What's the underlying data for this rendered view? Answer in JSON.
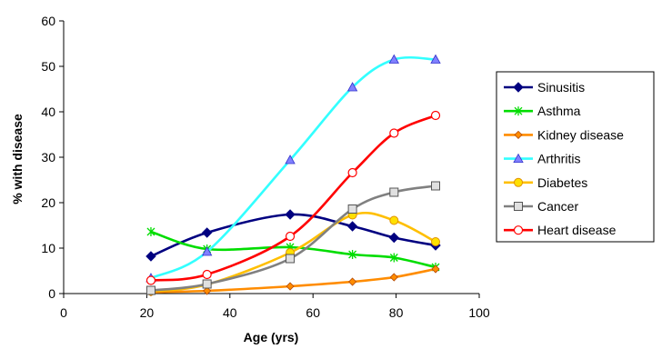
{
  "chart_data": {
    "type": "line",
    "title": "",
    "xlabel": "Age (yrs)",
    "ylabel": "% with disease",
    "xlim": [
      0,
      100
    ],
    "ylim": [
      0,
      60
    ],
    "xticks": [
      0,
      20,
      40,
      60,
      80,
      100
    ],
    "yticks": [
      0,
      10,
      20,
      30,
      40,
      50,
      60
    ],
    "grid": false,
    "legend_position": "right",
    "smooth": true,
    "x": [
      21,
      34.5,
      54.5,
      69.5,
      79.5,
      89.5
    ],
    "series": [
      {
        "name": "Sinusitis",
        "color": "#000080",
        "marker": "diamond",
        "values": [
          8.2,
          13.4,
          17.4,
          14.8,
          12.3,
          10.6
        ]
      },
      {
        "name": "Asthma",
        "color": "#00dd00",
        "marker": "asterisk",
        "values": [
          13.6,
          9.8,
          10.2,
          8.6,
          7.9,
          5.8
        ]
      },
      {
        "name": "Kidney disease",
        "color": "#ff8c00",
        "marker": "diamond-small",
        "values": [
          0.3,
          0.6,
          1.6,
          2.6,
          3.6,
          5.4
        ]
      },
      {
        "name": "Arthritis",
        "color": "#33ffff",
        "marker": "triangle",
        "values": [
          3.4,
          9.2,
          29.4,
          45.4,
          51.5,
          51.5
        ]
      },
      {
        "name": "Diabetes",
        "color": "#ffbf00",
        "marker": "circle",
        "values": [
          0.5,
          2.0,
          9.0,
          17.3,
          16.1,
          11.4
        ]
      },
      {
        "name": "Cancer",
        "color": "#808080",
        "marker": "square",
        "values": [
          0.7,
          2.1,
          7.7,
          18.6,
          22.3,
          23.7
        ]
      },
      {
        "name": "Heart disease",
        "color": "#ff0000",
        "marker": "circle-open",
        "values": [
          2.9,
          4.2,
          12.6,
          26.6,
          35.3,
          39.2
        ]
      }
    ]
  }
}
